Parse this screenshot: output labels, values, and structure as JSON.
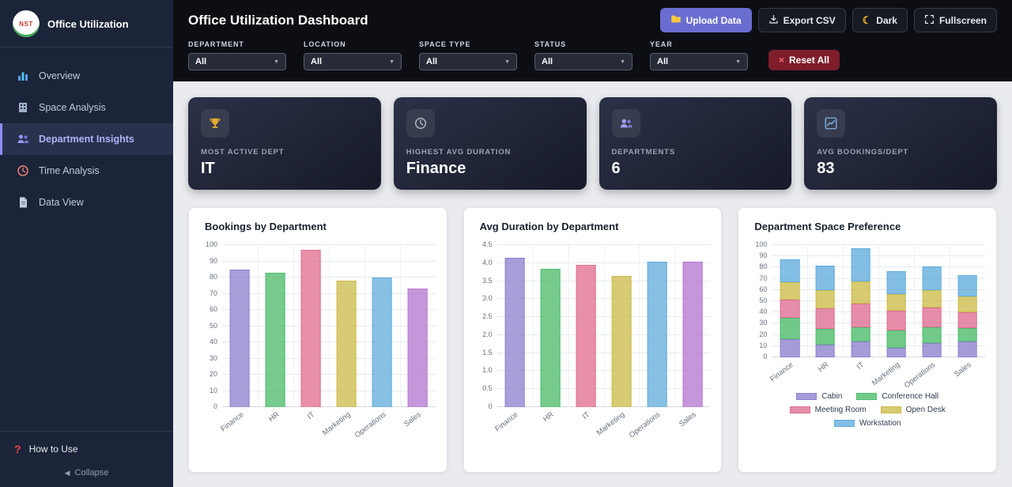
{
  "icons": {
    "moon": "☾",
    "caret_down": "▼",
    "collapse": "◀",
    "close": "×",
    "help": "?"
  },
  "sidebar": {
    "logo_text": "NST",
    "app_title": "Office Utilization",
    "items": [
      {
        "label": "Overview",
        "icon": "bar-chart-icon",
        "active": false
      },
      {
        "label": "Space Analysis",
        "icon": "building-icon",
        "active": false
      },
      {
        "label": "Department Insights",
        "icon": "users-icon",
        "active": true
      },
      {
        "label": "Time Analysis",
        "icon": "clock-icon",
        "active": false
      },
      {
        "label": "Data View",
        "icon": "document-icon",
        "active": false
      }
    ],
    "footer": {
      "help_label": "How to Use",
      "collapse_label": "Collapse"
    }
  },
  "header": {
    "title": "Office Utilization Dashboard",
    "buttons": [
      {
        "label": "Upload Data",
        "icon": "folder-icon"
      },
      {
        "label": "Export CSV",
        "icon": "download-icon"
      },
      {
        "label": "Dark",
        "icon": "moon-icon"
      },
      {
        "label": "Fullscreen",
        "icon": "fullscreen-icon"
      }
    ]
  },
  "filters": {
    "fields": [
      {
        "label": "DEPARTMENT",
        "value": "All"
      },
      {
        "label": "LOCATION",
        "value": "All"
      },
      {
        "label": "SPACE TYPE",
        "value": "All"
      },
      {
        "label": "STATUS",
        "value": "All"
      },
      {
        "label": "YEAR",
        "value": "All"
      }
    ],
    "reset_label": "Reset All"
  },
  "kpis": [
    {
      "icon": "trophy-icon",
      "label": "MOST ACTIVE DEPT",
      "value": "IT"
    },
    {
      "icon": "clock-icon",
      "label": "HIGHEST AVG DURATION",
      "value": "Finance"
    },
    {
      "icon": "users-icon",
      "label": "DEPARTMENTS",
      "value": "6"
    },
    {
      "icon": "chart-icon",
      "label": "AVG BOOKINGS/DEPT",
      "value": "83"
    }
  ],
  "chart_data": [
    {
      "type": "bar",
      "title": "Bookings by Department",
      "categories": [
        "Finance",
        "HR",
        "IT",
        "Marketing",
        "Operations",
        "Sales"
      ],
      "values": [
        85,
        83,
        97,
        78,
        80,
        73
      ],
      "colors": [
        "#8f83cf",
        "#4fbd6d",
        "#e0718f",
        "#cdbd4e",
        "#64aedd",
        "#b678cf"
      ],
      "ylim": [
        0,
        100
      ],
      "yticks": [
        "0",
        "10",
        "20",
        "30",
        "40",
        "50",
        "60",
        "70",
        "80",
        "90",
        "100"
      ],
      "grid": true,
      "legend_position": "none"
    },
    {
      "type": "bar",
      "title": "Avg Duration by Department",
      "categories": [
        "Finance",
        "HR",
        "IT",
        "Marketing",
        "Operations",
        "Sales"
      ],
      "values": [
        4.15,
        3.85,
        3.95,
        3.65,
        4.05,
        4.05
      ],
      "colors": [
        "#8f83cf",
        "#4fbd6d",
        "#e0718f",
        "#cdbd4e",
        "#64aedd",
        "#b678cf"
      ],
      "ylim": [
        0,
        4.5
      ],
      "yticks": [
        "0",
        "0.5",
        "1.0",
        "1.5",
        "2.0",
        "2.5",
        "3.0",
        "3.5",
        "4.0",
        "4.5"
      ],
      "grid": true,
      "legend_position": "none"
    },
    {
      "type": "stacked-bar",
      "title": "Department Space Preference",
      "categories": [
        "Finance",
        "HR",
        "IT",
        "Marketing",
        "Operations",
        "Sales"
      ],
      "series": [
        {
          "name": "Cabin",
          "color": "#8f83cf",
          "values": [
            16,
            11,
            14,
            8,
            12,
            14
          ]
        },
        {
          "name": "Conference Hall",
          "color": "#4fbd6d",
          "values": [
            19,
            14,
            12,
            15,
            14,
            12
          ]
        },
        {
          "name": "Meeting Room",
          "color": "#df7093",
          "values": [
            16,
            18,
            21,
            18,
            18,
            14
          ]
        },
        {
          "name": "Open Desk",
          "color": "#cdbd4e",
          "values": [
            16,
            16,
            20,
            15,
            15,
            14
          ]
        },
        {
          "name": "Workstation",
          "color": "#64aedd",
          "values": [
            20,
            23,
            30,
            21,
            22,
            19
          ]
        }
      ],
      "ylim": [
        0,
        100
      ],
      "yticks": [
        "0",
        "10",
        "20",
        "30",
        "40",
        "50",
        "60",
        "70",
        "80",
        "90",
        "100"
      ],
      "grid": true,
      "legend_position": "bottom"
    }
  ]
}
